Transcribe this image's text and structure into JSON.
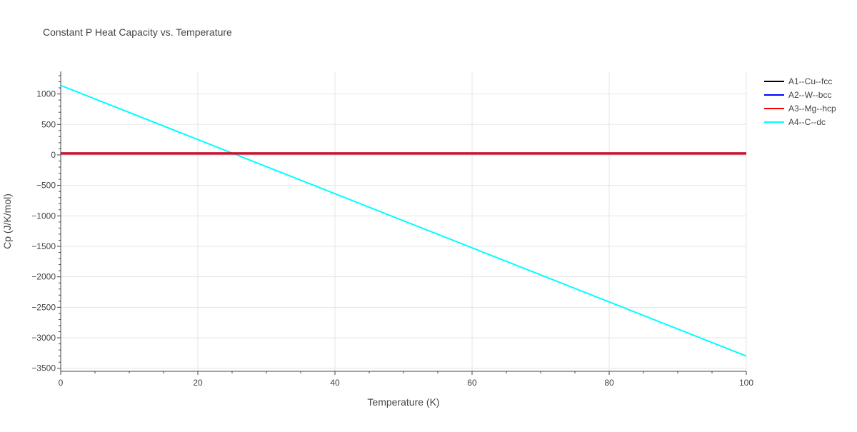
{
  "chart_data": {
    "type": "line",
    "title": "Constant P Heat Capacity vs. Temperature",
    "xlabel": "Temperature (K)",
    "ylabel": "Cp (J/K/mol)",
    "xlim": [
      0,
      100
    ],
    "ylim": [
      -3550,
      1370
    ],
    "x_ticks": [
      0,
      20,
      40,
      60,
      80,
      100
    ],
    "x_tick_labels": [
      "0",
      "20",
      "40",
      "60",
      "80",
      "100"
    ],
    "y_ticks": [
      1000,
      500,
      0,
      -500,
      -1000,
      -1500,
      -2000,
      -2500,
      -3000,
      -3500
    ],
    "y_tick_labels": [
      "1000",
      "500",
      "0",
      "−500",
      "−1000",
      "−1500",
      "−2000",
      "−2500",
      "−3000",
      "−3500"
    ],
    "grid": true,
    "legend_position": "top-right",
    "series": [
      {
        "name": "A1--Cu--fcc",
        "color": "#000000",
        "x": [
          0,
          100
        ],
        "y": [
          25,
          25
        ]
      },
      {
        "name": "A2--W--bcc",
        "color": "#0000ff",
        "x": [
          0,
          100
        ],
        "y": [
          25,
          25
        ]
      },
      {
        "name": "A3--Mg--hcp",
        "color": "#ff0000",
        "x": [
          0,
          100
        ],
        "y": [
          25,
          25
        ]
      },
      {
        "name": "A4--C--dc",
        "color": "#00ffff",
        "x": [
          0,
          100
        ],
        "y": [
          1140,
          -3300
        ]
      }
    ]
  }
}
